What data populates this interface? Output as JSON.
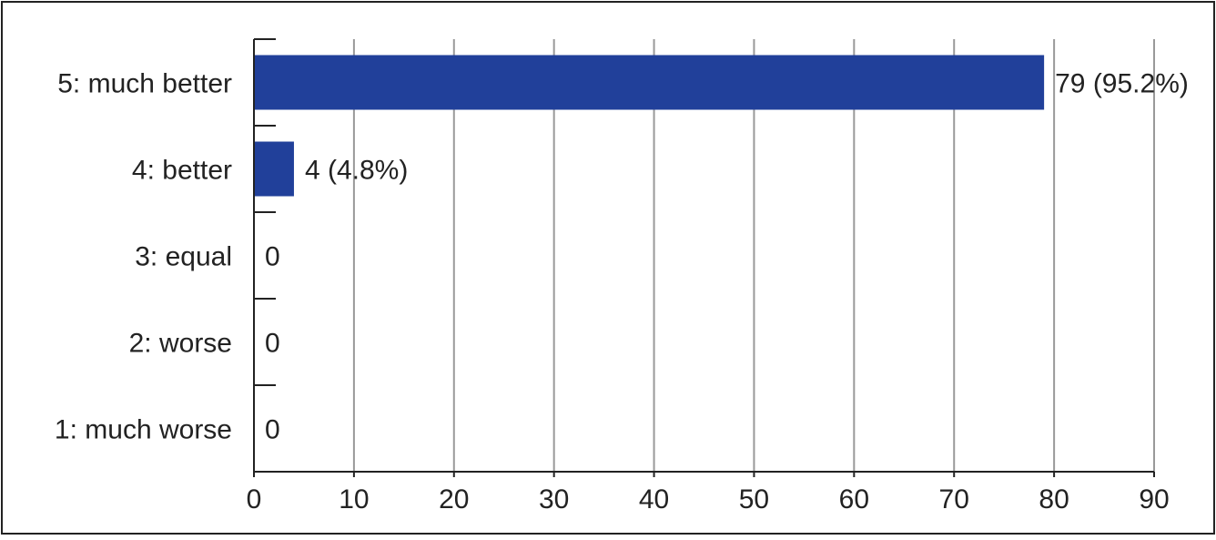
{
  "chart_data": {
    "type": "bar",
    "orientation": "horizontal",
    "categories": [
      "5: much better",
      "4: better",
      "3: equal",
      "2: worse",
      "1: much worse"
    ],
    "values": [
      79,
      4,
      0,
      0,
      0
    ],
    "data_labels": [
      "79 (95.2%)",
      "4 (4.8%)",
      "0",
      "0",
      "0"
    ],
    "xlim": [
      0,
      90
    ],
    "xticks": [
      0,
      10,
      20,
      30,
      40,
      50,
      60,
      70,
      80,
      90
    ],
    "xtick_labels": [
      "0",
      "10",
      "20",
      "30",
      "40",
      "50",
      "60",
      "70",
      "80",
      "90"
    ],
    "grid": "vertical",
    "legend": "none",
    "colors": {
      "bar": "#21409a",
      "grid": "#999999",
      "axis": "#222222",
      "frame": "#222222"
    }
  }
}
